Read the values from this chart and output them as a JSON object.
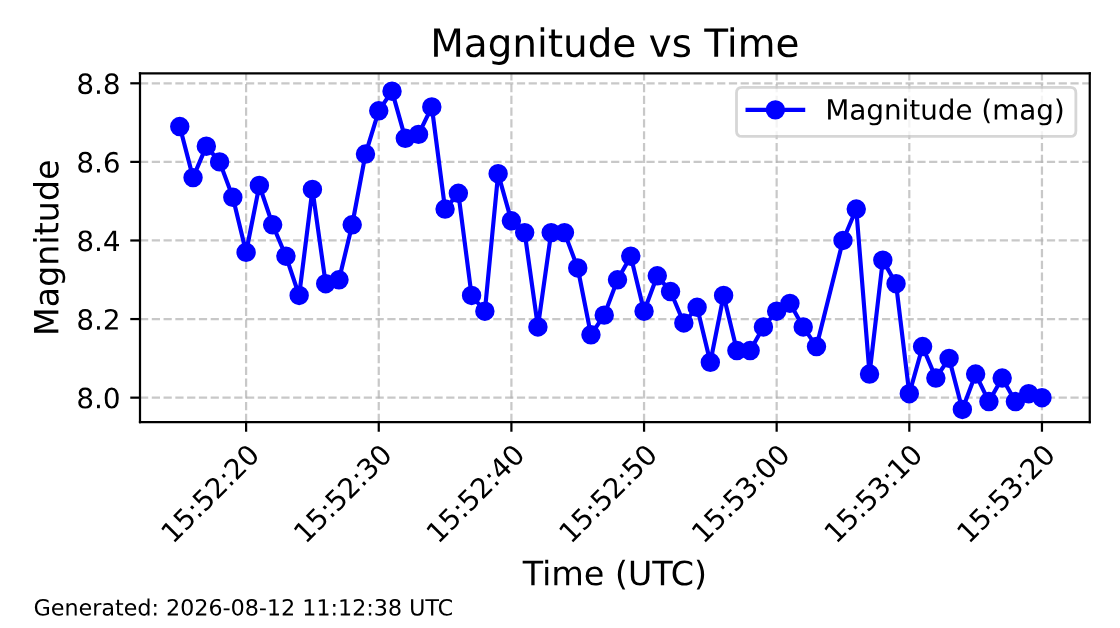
{
  "chart_data": {
    "type": "line",
    "title": "Magnitude vs Time",
    "xlabel": "Time (UTC)",
    "ylabel": "Magnitude",
    "annotations": [
      "Generated: 2026-08-12 11:12:38 UTC"
    ],
    "x": [
      15.870833,
      15.871111,
      15.871389,
      15.871667,
      15.871944,
      15.872222,
      15.8725,
      15.872778,
      15.873056,
      15.873333,
      15.873611,
      15.873889,
      15.874167,
      15.874444,
      15.874722,
      15.875,
      15.875278,
      15.875556,
      15.875833,
      15.876111,
      15.876389,
      15.876667,
      15.876944,
      15.877222,
      15.8775,
      15.877778,
      15.878056,
      15.878333,
      15.878611,
      15.878889,
      15.879167,
      15.879444,
      15.879722,
      15.88,
      15.880278,
      15.880556,
      15.880833,
      15.881111,
      15.881389,
      15.881667,
      15.881944,
      15.882222,
      15.8825,
      15.882778,
      15.883056,
      15.883333,
      15.883611,
      15.883889,
      15.884167,
      15.884722,
      15.885,
      15.885278,
      15.885556,
      15.885833,
      15.886111,
      15.886389,
      15.886667,
      15.886944,
      15.887222,
      15.8875,
      15.887778,
      15.888056,
      15.888333,
      15.888611,
      15.888889
    ],
    "series": [
      {
        "name": "Magnitude (mag)",
        "color": "#0000ff",
        "values": [
          8.69,
          8.56,
          8.64,
          8.6,
          8.51,
          8.37,
          8.54,
          8.44,
          8.36,
          8.26,
          8.53,
          8.29,
          8.3,
          8.44,
          8.62,
          8.73,
          8.78,
          8.66,
          8.67,
          8.74,
          8.48,
          8.52,
          8.26,
          8.22,
          8.57,
          8.45,
          8.42,
          8.18,
          8.42,
          8.42,
          8.33,
          8.16,
          8.21,
          8.3,
          8.36,
          8.22,
          8.31,
          8.27,
          8.19,
          8.23,
          8.09,
          8.26,
          8.12,
          8.12,
          8.18,
          8.22,
          8.24,
          8.18,
          8.13,
          8.4,
          8.48,
          8.06,
          8.35,
          8.29,
          8.01,
          8.13,
          8.05,
          8.1,
          7.97,
          8.06,
          7.99,
          8.05,
          7.99,
          8.01,
          8.0
        ]
      }
    ],
    "xlim": [
      15.87,
      15.88989
    ],
    "xticks": [
      {
        "value": 15.872222,
        "label": "15:52:20"
      },
      {
        "value": 15.875,
        "label": "15:52:30"
      },
      {
        "value": 15.877778,
        "label": "15:52:40"
      },
      {
        "value": 15.880556,
        "label": "15:52:50"
      },
      {
        "value": 15.883333,
        "label": "15:53:00"
      },
      {
        "value": 15.886111,
        "label": "15:53:10"
      },
      {
        "value": 15.888889,
        "label": "15:53:20"
      }
    ],
    "ylim": [
      7.938,
      8.825
    ],
    "yticks": [
      {
        "value": 8.0,
        "label": "8.0"
      },
      {
        "value": 8.2,
        "label": "8.2"
      },
      {
        "value": 8.4,
        "label": "8.4"
      },
      {
        "value": 8.6,
        "label": "8.6"
      },
      {
        "value": 8.8,
        "label": "8.8"
      }
    ],
    "grid": true,
    "legend": "top right",
    "marker": "circle",
    "line_style": "solid"
  }
}
